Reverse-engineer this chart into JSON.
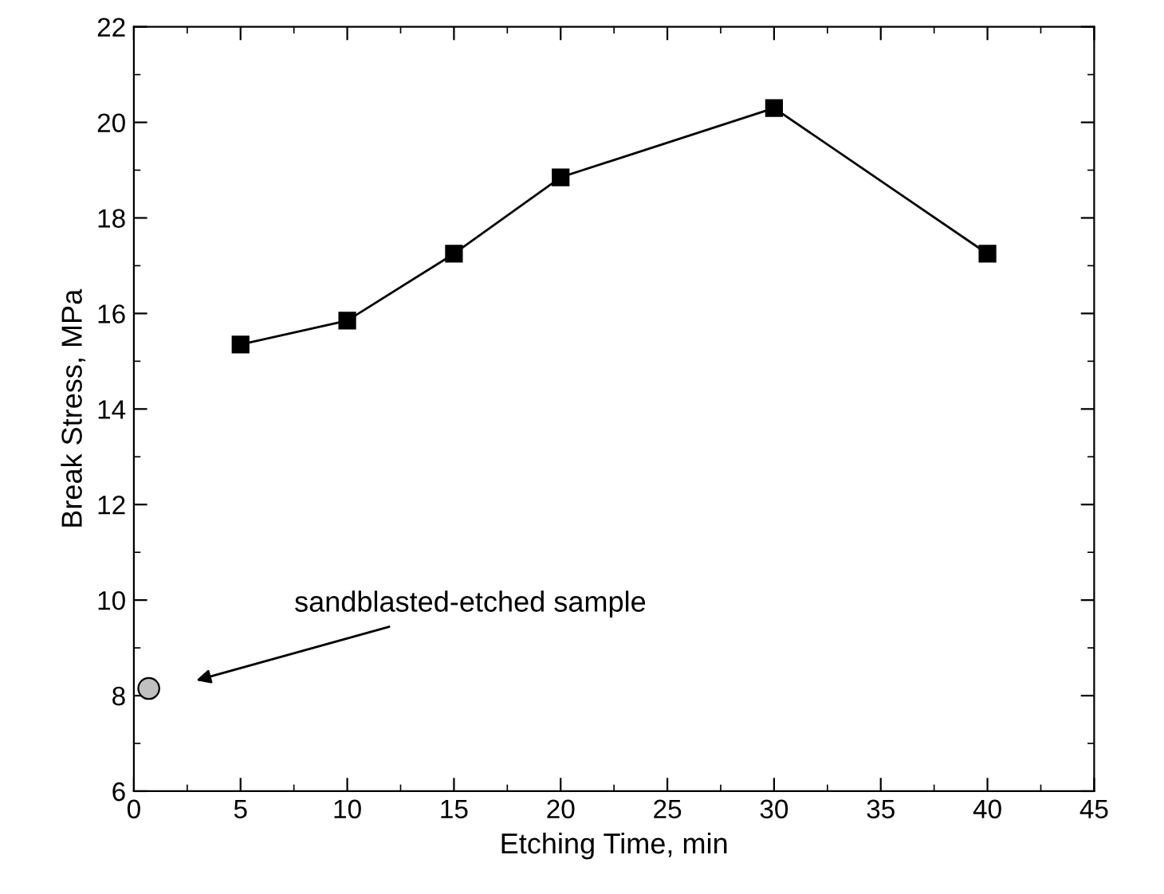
{
  "chart_data": {
    "type": "line",
    "xlabel": "Etching Time, min",
    "ylabel": "Break Stress, MPa",
    "xlim": [
      0,
      45
    ],
    "xticks": [
      0,
      5,
      10,
      15,
      20,
      25,
      30,
      35,
      40,
      45
    ],
    "ylim": [
      6,
      22
    ],
    "yticks": [
      6,
      8,
      10,
      12,
      14,
      16,
      18,
      20,
      22
    ],
    "grid": false,
    "series": [
      {
        "color": "#000000",
        "marker": "square",
        "line_style": "solid",
        "x": [
          5,
          10,
          15,
          20,
          30,
          40
        ],
        "values": [
          15.35,
          15.85,
          17.25,
          18.85,
          20.3,
          17.25
        ]
      },
      {
        "type": "scatter",
        "color": "#c0c0c0",
        "marker": "circle",
        "x": [
          0.7
        ],
        "values": [
          8.15
        ]
      }
    ],
    "annotations": [
      "sandblasted-etched sample"
    ]
  }
}
